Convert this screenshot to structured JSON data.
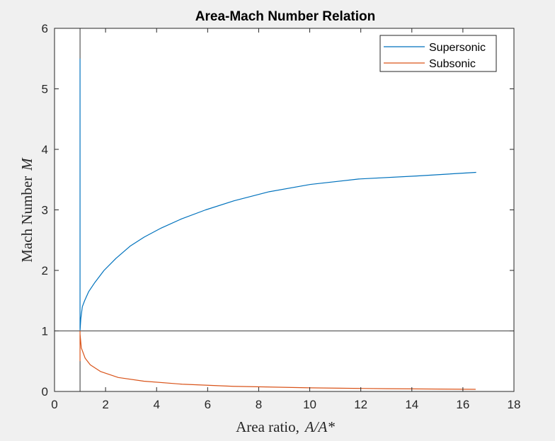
{
  "colors": {
    "supersonic": "#0072BD",
    "subsonic": "#D95319",
    "axis": "#262626",
    "reference": "#000000"
  },
  "chart_data": {
    "type": "line",
    "title": "Area-Mach Number Relation",
    "xlabel_text": "Area ratio,",
    "xlabel_math": "A/A*",
    "ylabel_text": "Mach Number",
    "ylabel_math": "M",
    "xlim": [
      0,
      18
    ],
    "ylim": [
      0,
      6
    ],
    "xticks": [
      0,
      2,
      4,
      6,
      8,
      10,
      12,
      14,
      16,
      18
    ],
    "yticks": [
      0,
      1,
      2,
      3,
      4,
      5,
      6
    ],
    "grid": false,
    "legend_position": "top-right",
    "reference_lines": [
      {
        "orientation": "horizontal",
        "value": 1
      },
      {
        "orientation": "vertical",
        "value": 1
      }
    ],
    "series": [
      {
        "name": "Supersonic",
        "x": [
          1.0,
          1.0,
          1.0,
          1.0,
          1.0,
          1.03,
          1.09,
          1.18,
          1.34,
          1.58,
          1.94,
          2.41,
          2.96,
          3.51,
          4.18,
          4.97,
          5.92,
          7.03,
          8.41,
          10.02,
          11.92,
          14.18,
          16.52
        ],
        "y": [
          5.5,
          5.0,
          3.0,
          2.0,
          1.0,
          1.2,
          1.4,
          1.5,
          1.65,
          1.8,
          2.0,
          2.2,
          2.4,
          2.55,
          2.7,
          2.85,
          3.0,
          3.15,
          3.3,
          3.42,
          3.51,
          3.56,
          3.62
        ],
        "gridspaced_x": [
          1.0,
          1.0,
          1.03,
          1.09,
          1.18,
          1.34,
          1.58,
          1.94,
          2.41,
          2.96,
          3.51,
          4.18,
          4.97,
          5.92,
          7.03,
          8.41,
          10.02,
          11.92,
          14.18,
          16.52
        ],
        "gridspaced_y": [
          5.5,
          1.0,
          1.2,
          1.4,
          1.5,
          1.65,
          1.8,
          2.0,
          2.2,
          2.4,
          2.55,
          2.7,
          2.85,
          3.0,
          3.15,
          3.3,
          3.42,
          3.51,
          3.56,
          3.62
        ]
      },
      {
        "name": "Subsonic",
        "x": [
          1.0,
          1.0,
          1.0,
          1.05,
          1.2,
          1.4,
          1.8,
          2.5,
          3.5,
          5.0,
          7.0,
          10.0,
          13.0,
          16.5
        ],
        "y": [
          0.5,
          1.0,
          0.95,
          0.72,
          0.55,
          0.44,
          0.33,
          0.23,
          0.17,
          0.12,
          0.085,
          0.06,
          0.045,
          0.035
        ]
      }
    ]
  }
}
